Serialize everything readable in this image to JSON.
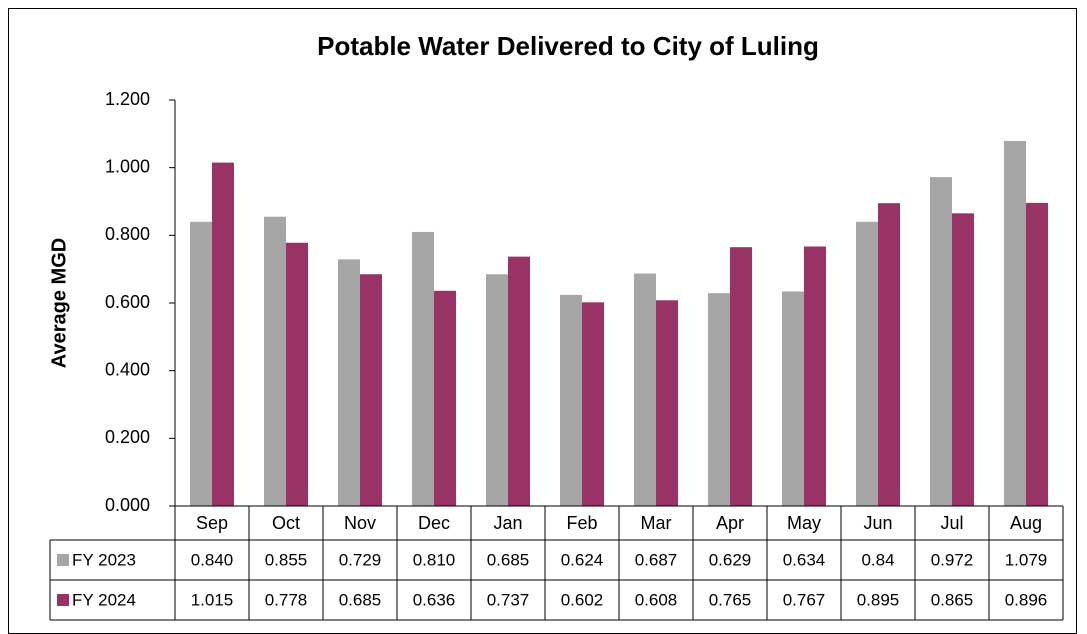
{
  "chart_data": {
    "type": "bar",
    "title": "Potable Water Delivered to City of Luling",
    "y_label": "Average MGD",
    "categories": [
      "Sep",
      "Oct",
      "Nov",
      "Dec",
      "Jan",
      "Feb",
      "Mar",
      "Apr",
      "May",
      "Jun",
      "Jul",
      "Aug"
    ],
    "series": [
      {
        "name": "FY 2023",
        "color": "#a6a6a6",
        "values": [
          0.84,
          0.855,
          0.729,
          0.81,
          0.685,
          0.624,
          0.687,
          0.629,
          0.634,
          0.84,
          0.972,
          1.079
        ],
        "value_labels": [
          "0.840",
          "0.855",
          "0.729",
          "0.810",
          "0.685",
          "0.624",
          "0.687",
          "0.629",
          "0.634",
          "0.84",
          "0.972",
          "1.079"
        ]
      },
      {
        "name": "FY 2024",
        "color": "#993366",
        "values": [
          1.015,
          0.778,
          0.685,
          0.636,
          0.737,
          0.602,
          0.608,
          0.765,
          0.767,
          0.895,
          0.865,
          0.896
        ],
        "value_labels": [
          "1.015",
          "0.778",
          "0.685",
          "0.636",
          "0.737",
          "0.602",
          "0.608",
          "0.765",
          "0.767",
          "0.895",
          "0.865",
          "0.896"
        ]
      }
    ],
    "ylim": [
      0,
      1.2
    ],
    "yticks": [
      {
        "value": 0,
        "label": "0.000"
      },
      {
        "value": 0.2,
        "label": "0.200"
      },
      {
        "value": 0.4,
        "label": "0.400"
      },
      {
        "value": 0.6,
        "label": "0.600"
      },
      {
        "value": 0.8,
        "label": "0.800"
      },
      {
        "value": 1.0,
        "label": "1.000"
      },
      {
        "value": 1.2,
        "label": "1.200"
      }
    ],
    "grid": false
  }
}
